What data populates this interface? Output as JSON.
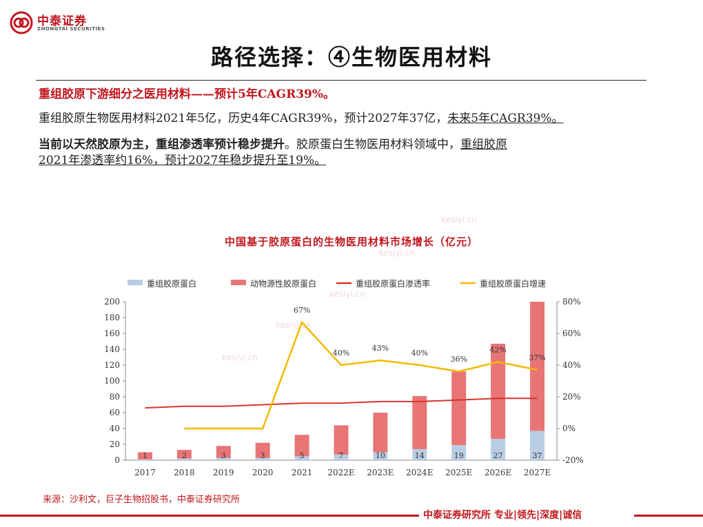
{
  "brand": {
    "name_cn": "中泰证券",
    "name_en": "ZHONGTAI SECURITIES",
    "color": "#c0161d"
  },
  "page_title": "路径选择：④生物医用材料",
  "para1": "重组胶原下游细分之医用材料——预计5年CAGR39%。",
  "para2": {
    "main": "重组胶原生物医用材料2021年5亿，历史4年CAGR39%，预计2027年37亿，",
    "underlined": "未来5年CAGR39%。"
  },
  "para3": {
    "bold": "当前以天然胶原为主，重组渗透率预计稳步提升",
    "main": "。胶原蛋白生物医用材料领域中，",
    "underlined1": "重组胶原",
    "underlined2": "2021年渗透率约16%，预计2027年稳步提升至19%。"
  },
  "chart_data": {
    "type": "bar",
    "title": "中国基于胶原蛋白的生物医用材料市场增长（亿元）",
    "categories": [
      "2017",
      "2018",
      "2019",
      "2020",
      "2021",
      "2022E",
      "2023E",
      "2024E",
      "2025E",
      "2026E",
      "2027E"
    ],
    "series": [
      {
        "name": "重组胶原蛋白",
        "kind": "stacked-bar",
        "color": "#b8cde4",
        "values": [
          1,
          2,
          3,
          3,
          5,
          7,
          10,
          14,
          19,
          27,
          37
        ],
        "labels": [
          "1",
          "2",
          "3",
          "3",
          "5",
          "7",
          "10",
          "14",
          "19",
          "27",
          "37"
        ]
      },
      {
        "name": "动物源性胶原蛋白",
        "kind": "stacked-bar",
        "color": "#e87575",
        "values": [
          9,
          11,
          15,
          19,
          27,
          37,
          50,
          67,
          93,
          120,
          163
        ]
      },
      {
        "name": "重组胶原蛋白渗透率",
        "kind": "line",
        "axis": "right",
        "color": "#d9342b",
        "values": [
          13,
          14,
          14,
          15,
          16,
          16,
          17,
          17,
          18,
          19,
          19
        ]
      },
      {
        "name": "重组胶原蛋白增速",
        "kind": "line",
        "axis": "right",
        "color": "#f5b800",
        "values": [
          null,
          0,
          0,
          0,
          67,
          40,
          43,
          40,
          36,
          42,
          37
        ],
        "labels": [
          "",
          "",
          "",
          "",
          "67%",
          "40%",
          "43%",
          "40%",
          "36%",
          "42%",
          "37%"
        ]
      }
    ],
    "ylim": [
      0,
      200
    ],
    "yticks": [
      "0",
      "20",
      "40",
      "60",
      "80",
      "100",
      "120",
      "140",
      "160",
      "180",
      "200"
    ],
    "y2lim": [
      -20,
      80
    ],
    "y2ticks": [
      "-20%",
      "0%",
      "20%",
      "40%",
      "60%",
      "80%"
    ],
    "legend": "top"
  },
  "source": "来源：沙利文，巨子生物招股书，中泰证券研究所",
  "footer": "中泰证券研究所 专业|领先|深度|诚信",
  "watermark": "kesiyi.cn"
}
